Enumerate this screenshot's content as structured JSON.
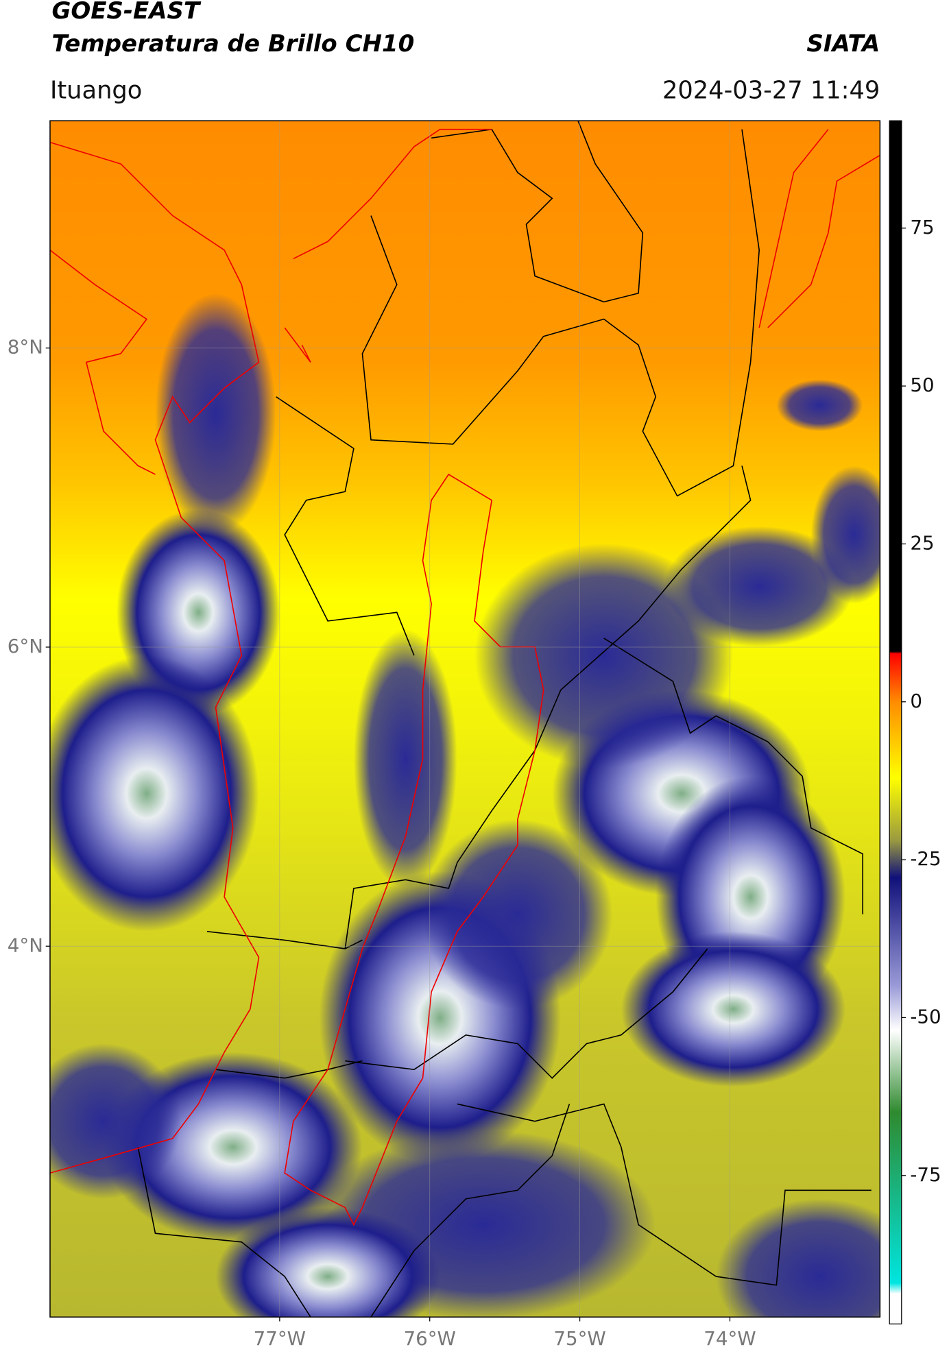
{
  "header": {
    "title": "GOES-EAST",
    "subtitle": "Temperatura de Brillo CH10",
    "source": "SIATA",
    "location": "Ituango",
    "timestamp": "2024-03-27 11:49"
  },
  "map": {
    "lat_range": [
      1.52,
      9.52
    ],
    "lon_range": [
      -78.53,
      -73.0
    ],
    "grid": true,
    "lat_ticks": [
      {
        "value": 8,
        "label": "8°N"
      },
      {
        "value": 6,
        "label": "6°N"
      },
      {
        "value": 4,
        "label": "4°N"
      }
    ],
    "lon_ticks": [
      {
        "value": -77,
        "label": "77°W"
      },
      {
        "value": -76,
        "label": "76°W"
      },
      {
        "value": -75,
        "label": "75°W"
      },
      {
        "value": -74,
        "label": "74°W"
      }
    ]
  },
  "colorbar": {
    "range": [
      -98.5,
      92
    ],
    "ticks": [
      75,
      50,
      25,
      0,
      -25,
      -50,
      -75
    ]
  }
}
